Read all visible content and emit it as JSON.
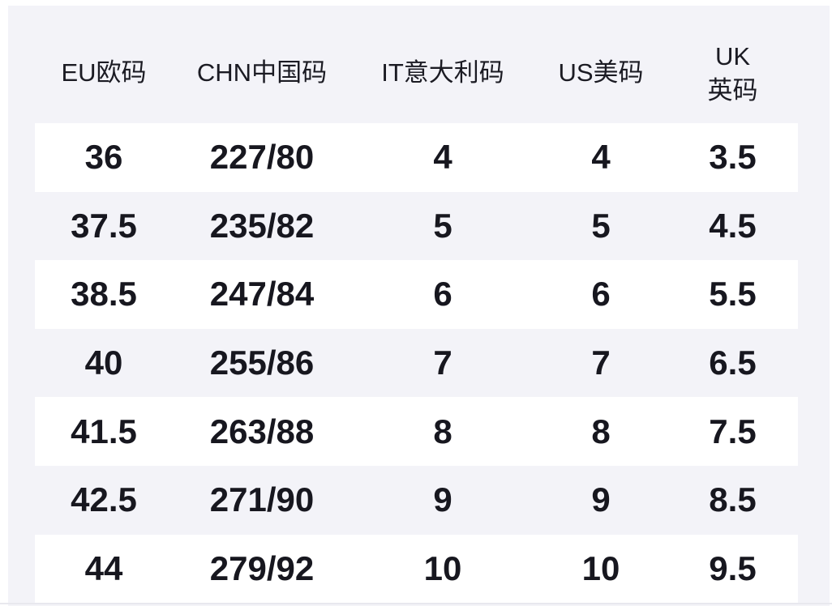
{
  "page": {
    "background": "#ffffff",
    "panel_background": "#f3f3f8",
    "striped_row_color": "#ffffff",
    "header_text_color": "#1b1b23",
    "body_text_color": "#17171f",
    "bottom_divider_color": "#e8e8ee"
  },
  "chart_data": {
    "type": "table",
    "title": "",
    "columns": [
      "EU欧码",
      "CHN中国码",
      "IT意大利码",
      "US美码",
      "UK英码"
    ],
    "rows": [
      [
        "36",
        "227/80",
        "4",
        "4",
        "3.5"
      ],
      [
        "37.5",
        "235/82",
        "5",
        "5",
        "4.5"
      ],
      [
        "38.5",
        "247/84",
        "6",
        "6",
        "5.5"
      ],
      [
        "40",
        "255/86",
        "7",
        "7",
        "6.5"
      ],
      [
        "41.5",
        "263/88",
        "8",
        "8",
        "7.5"
      ],
      [
        "42.5",
        "271/90",
        "9",
        "9",
        "8.5"
      ],
      [
        "44",
        "279/92",
        "10",
        "10",
        "9.5"
      ]
    ],
    "layout": {
      "striped": true,
      "striped_rows": "odd",
      "header_position": "top",
      "grid": false
    }
  }
}
